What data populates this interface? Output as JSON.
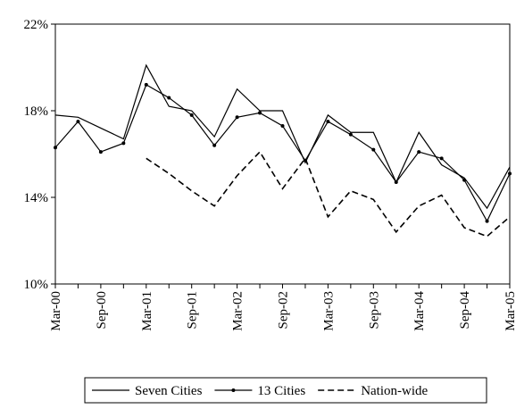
{
  "chart_data": {
    "type": "line",
    "categories": [
      "Mar-00",
      null,
      "Sep-00",
      null,
      "Mar-01",
      null,
      "Sep-01",
      null,
      "Mar-02",
      null,
      "Sep-02",
      null,
      "Mar-03",
      null,
      "Sep-03",
      null,
      "Mar-04",
      null,
      "Sep-04",
      null,
      "Mar-05"
    ],
    "series": [
      {
        "name": "Seven Cities",
        "color": "#000000",
        "dashed": false,
        "markers": false,
        "values": [
          17.8,
          17.7,
          17.2,
          16.7,
          20.1,
          18.2,
          18.0,
          16.8,
          19.0,
          18.0,
          18.0,
          15.6,
          17.8,
          17.0,
          17.0,
          14.7,
          17.0,
          15.5,
          14.9,
          13.5,
          15.4
        ]
      },
      {
        "name": "13 Cities",
        "color": "#000000",
        "dashed": false,
        "markers": true,
        "values": [
          16.3,
          17.5,
          16.1,
          16.5,
          19.2,
          18.6,
          17.8,
          16.4,
          17.7,
          17.9,
          17.3,
          15.7,
          17.5,
          16.9,
          16.2,
          14.7,
          16.1,
          15.8,
          14.8,
          12.9,
          15.1
        ]
      },
      {
        "name": "Nation-wide",
        "color": "#000000",
        "dashed": true,
        "markers": false,
        "values": [
          null,
          null,
          null,
          null,
          15.8,
          15.1,
          14.3,
          13.6,
          15.0,
          16.1,
          14.4,
          15.8,
          13.1,
          14.3,
          13.9,
          12.4,
          13.6,
          14.1,
          12.6,
          12.2,
          13.1
        ]
      }
    ],
    "ylim": [
      10,
      22
    ],
    "yticks": [
      {
        "value": 10,
        "label": "10%"
      },
      {
        "value": 14,
        "label": "14%"
      },
      {
        "value": 18,
        "label": "18%"
      },
      {
        "value": 22,
        "label": "22%"
      }
    ],
    "legend": "bottom"
  }
}
